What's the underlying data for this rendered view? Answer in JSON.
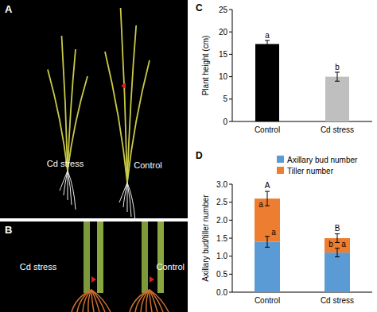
{
  "panels": [
    {
      "label": "A",
      "texts": [
        "Cd stress",
        "Control"
      ]
    },
    {
      "label": "B",
      "texts": [
        "Cd stress",
        "Control"
      ]
    }
  ],
  "chart_data": [
    {
      "panel": "C",
      "type": "bar",
      "categories": [
        "Control",
        "Cd stress"
      ],
      "values": [
        17.3,
        10.0
      ],
      "errors": [
        0.8,
        1.0
      ],
      "colors": [
        "#000000",
        "#bfbfbf"
      ],
      "letters": [
        "a",
        "b"
      ],
      "y_label": "Plant height (cm)",
      "ylim": [
        0,
        25
      ],
      "yticks": [
        0,
        5,
        10,
        15,
        20,
        25
      ]
    },
    {
      "panel": "D",
      "type": "bar",
      "stacked": true,
      "categories": [
        "Control",
        "Cd stress"
      ],
      "series": [
        {
          "name": "Axillary bud number",
          "color": "#5b9bd5",
          "values": [
            1.4,
            1.1
          ],
          "errors": [
            0.15,
            0.12
          ],
          "letters": [
            "a",
            "a"
          ]
        },
        {
          "name": "Tiller number",
          "color": "#ed7d31",
          "values": [
            1.2,
            0.4
          ],
          "errors": [
            0.2,
            0.12
          ],
          "letters": [
            "a",
            "b"
          ]
        }
      ],
      "total_letters": [
        "A",
        "B"
      ],
      "y_label": "Axillary bud/tiller number",
      "ylim": [
        0,
        3
      ],
      "yticks": [
        {
          "value": 0,
          "label": "0.0"
        },
        {
          "value": 0.5,
          "label": "0.5"
        },
        {
          "value": 1,
          "label": "1.0"
        },
        {
          "value": 1.5,
          "label": "1.5"
        },
        {
          "value": 2,
          "label": "2.0"
        },
        {
          "value": 2.5,
          "label": "2.5"
        },
        {
          "value": 3,
          "label": "3.0"
        }
      ],
      "legend": "top-right"
    }
  ]
}
